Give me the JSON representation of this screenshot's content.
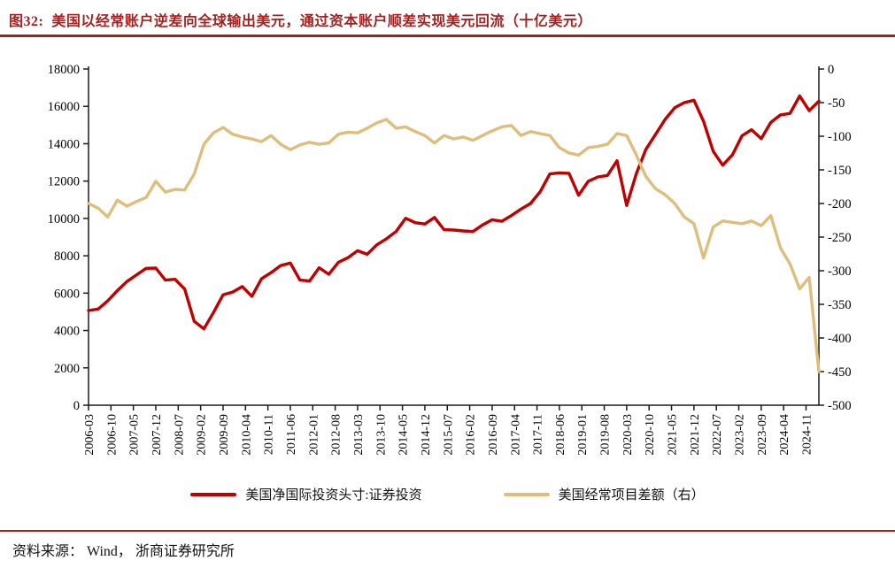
{
  "chart_data": {
    "type": "line",
    "title": "图32:  美国以经常账户逆差向全球输出美元，通过资本账户顺差实现美元回流（十亿美元）",
    "xlabel": "",
    "ylabel_left": "",
    "ylabel_right": "",
    "grid": false,
    "legend_position": "bottom-center",
    "x_tick_interval_months": 7,
    "x_tick_labels": [
      "2006-03",
      "2006-10",
      "2007-05",
      "2007-12",
      "2008-07",
      "2009-02",
      "2009-09",
      "2010-04",
      "2010-11",
      "2011-06",
      "2012-01",
      "2012-08",
      "2013-03",
      "2013-10",
      "2014-05",
      "2014-12",
      "2015-07",
      "2016-02",
      "2016-09",
      "2017-04",
      "2017-11",
      "2018-06",
      "2019-01",
      "2019-08",
      "2020-03",
      "2020-10",
      "2021-05",
      "2021-12",
      "2022-07",
      "2023-02",
      "2023-09",
      "2024-04",
      "2024-11"
    ],
    "left_axis": {
      "min": 0,
      "max": 18000,
      "ticks": [
        0,
        2000,
        4000,
        6000,
        8000,
        10000,
        12000,
        14000,
        16000,
        18000
      ]
    },
    "right_axis": {
      "min": -500,
      "max": 0,
      "ticks": [
        0,
        -50,
        -100,
        -150,
        -200,
        -250,
        -300,
        -350,
        -400,
        -450,
        -500
      ]
    },
    "x": [
      "2006-03",
      "2006-06",
      "2006-09",
      "2006-12",
      "2007-03",
      "2007-06",
      "2007-09",
      "2007-12",
      "2008-03",
      "2008-06",
      "2008-09",
      "2008-12",
      "2009-03",
      "2009-06",
      "2009-09",
      "2009-12",
      "2010-03",
      "2010-06",
      "2010-09",
      "2010-12",
      "2011-03",
      "2011-06",
      "2011-09",
      "2011-12",
      "2012-03",
      "2012-06",
      "2012-09",
      "2012-12",
      "2013-03",
      "2013-06",
      "2013-09",
      "2013-12",
      "2014-03",
      "2014-06",
      "2014-09",
      "2014-12",
      "2015-03",
      "2015-06",
      "2015-09",
      "2015-12",
      "2016-03",
      "2016-06",
      "2016-09",
      "2016-12",
      "2017-03",
      "2017-06",
      "2017-09",
      "2017-12",
      "2018-03",
      "2018-06",
      "2018-09",
      "2018-12",
      "2019-03",
      "2019-06",
      "2019-09",
      "2019-12",
      "2020-03",
      "2020-06",
      "2020-09",
      "2020-12",
      "2021-03",
      "2021-06",
      "2021-09",
      "2021-12",
      "2022-03",
      "2022-06",
      "2022-09",
      "2022-12",
      "2023-03",
      "2023-06",
      "2023-09",
      "2023-12",
      "2024-03",
      "2024-06",
      "2024-09",
      "2024-12",
      "2025-03"
    ],
    "series": [
      {
        "id": "niip-portfolio",
        "name": "美国净国际投资头寸:证券投资",
        "axis": "left",
        "color": "#C00000",
        "values": [
          5070,
          5150,
          5590,
          6140,
          6620,
          6980,
          7330,
          7340,
          6700,
          6740,
          6220,
          4490,
          4090,
          4960,
          5910,
          6060,
          6350,
          5830,
          6770,
          7100,
          7480,
          7610,
          6700,
          6650,
          7360,
          7010,
          7650,
          7900,
          8270,
          8080,
          8590,
          8910,
          9300,
          10010,
          9770,
          9700,
          10050,
          9400,
          9380,
          9330,
          9300,
          9650,
          9930,
          9850,
          10150,
          10500,
          10800,
          11430,
          12380,
          12440,
          12410,
          11240,
          11990,
          12220,
          12300,
          13090,
          10690,
          12400,
          13700,
          14500,
          15300,
          15930,
          16200,
          16330,
          15200,
          13600,
          12850,
          13400,
          14430,
          14750,
          14270,
          15140,
          15540,
          15620,
          16560,
          15770,
          16280
        ]
      },
      {
        "id": "current-account",
        "name": "美国经常项目差额（右）",
        "axis": "right",
        "color": "#DEBE7D",
        "values": [
          -200,
          -207,
          -220,
          -195,
          -204,
          -197,
          -191,
          -167,
          -183,
          -179,
          -180,
          -156,
          -112,
          -95,
          -87,
          -97,
          -101,
          -104,
          -108,
          -99,
          -112,
          -120,
          -113,
          -109,
          -112,
          -110,
          -97,
          -94,
          -95,
          -88,
          -80,
          -75,
          -88,
          -86,
          -93,
          -99,
          -110,
          -99,
          -104,
          -101,
          -106,
          -99,
          -92,
          -86,
          -84,
          -99,
          -93,
          -96,
          -99,
          -117,
          -125,
          -128,
          -117,
          -115,
          -112,
          -96,
          -99,
          -128,
          -160,
          -178,
          -187,
          -200,
          -220,
          -230,
          -281,
          -235,
          -226,
          -228,
          -230,
          -226,
          -233,
          -218,
          -266,
          -290,
          -327,
          -310,
          -450
        ]
      }
    ]
  },
  "legend": [
    {
      "label": "美国净国际投资头寸:证券投资",
      "color": "#C00000"
    },
    {
      "label": "美国经常项目差额（右）",
      "color": "#DEBE7D"
    }
  ],
  "footer": {
    "source": "资料来源： Wind， 浙商证券研究所"
  },
  "colors": {
    "accent": "#A32020",
    "axis": "#1a1a1a",
    "series_red": "#C00000",
    "series_tan": "#DEBE7D"
  }
}
